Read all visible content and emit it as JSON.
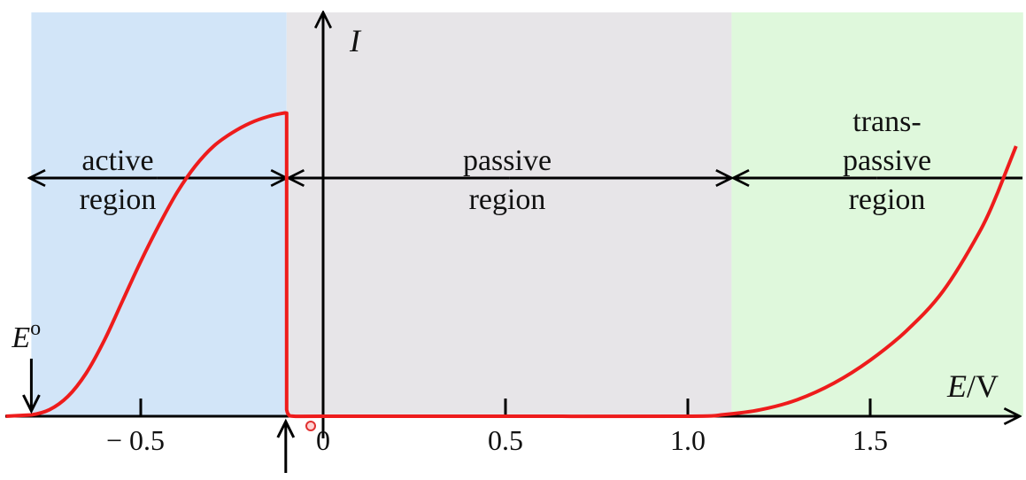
{
  "chart_data": {
    "type": "line",
    "title": "",
    "xlabel": "E/V",
    "xlabel_italic_part": "E",
    "xlabel_unit_part": "/V",
    "ylabel": "I",
    "xlim": [
      -0.87,
      1.93
    ],
    "ylim": [
      0,
      1.0
    ],
    "x_ticks": [
      {
        "value": -0.5,
        "label": "− 0.5"
      },
      {
        "value": 0,
        "label": "0"
      },
      {
        "value": 0.5,
        "label": "0.5"
      },
      {
        "value": 1.0,
        "label": "1.0"
      },
      {
        "value": 1.5,
        "label": "1.5"
      }
    ],
    "regions": [
      {
        "name": "active",
        "lines": [
          "active",
          "region"
        ],
        "x_range": [
          -0.8,
          -0.1
        ],
        "color": "#d2e5f8"
      },
      {
        "name": "passive",
        "lines": [
          "passive",
          "region"
        ],
        "x_range": [
          -0.1,
          1.12
        ],
        "color": "#e7e5e8"
      },
      {
        "name": "transpassive",
        "lines": [
          "trans-",
          "passive",
          "region"
        ],
        "x_range": [
          1.12,
          1.9
        ],
        "color": "#dff8dc"
      }
    ],
    "annotations": {
      "equilibrium_potential": {
        "label": "E",
        "superscript": "o",
        "x": -0.8
      },
      "passivation_potential": {
        "x": -0.1
      }
    },
    "series": [
      {
        "color": "#ee1c1c",
        "x": [
          -0.87,
          -0.8,
          -0.75,
          -0.7,
          -0.65,
          -0.6,
          -0.55,
          -0.5,
          -0.45,
          -0.4,
          -0.35,
          -0.3,
          -0.25,
          -0.2,
          -0.15,
          -0.11,
          -0.1,
          -0.1,
          -0.095,
          -0.08,
          0.0,
          0.5,
          1.0,
          1.1,
          1.2,
          1.3,
          1.4,
          1.5,
          1.6,
          1.7,
          1.8,
          1.85,
          1.9
        ],
        "y": [
          0.0,
          0.004,
          0.02,
          0.06,
          0.13,
          0.23,
          0.35,
          0.47,
          0.58,
          0.68,
          0.76,
          0.82,
          0.86,
          0.89,
          0.91,
          0.92,
          0.92,
          0.02,
          0.005,
          0.0,
          0.0,
          0.0,
          0.0,
          0.005,
          0.02,
          0.05,
          0.1,
          0.17,
          0.26,
          0.38,
          0.56,
          0.68,
          0.82
        ]
      }
    ]
  }
}
